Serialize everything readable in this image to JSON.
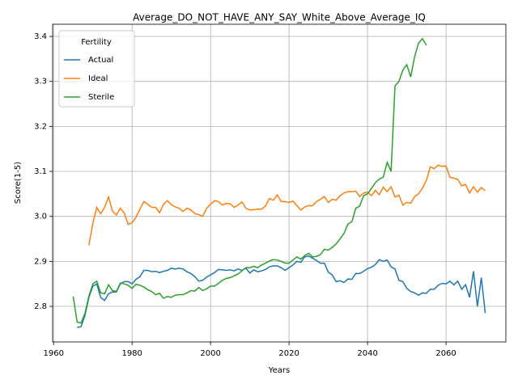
{
  "chart_data": {
    "type": "line",
    "title": "Average_DO_NOT_HAVE_ANY_SAY_White_Above_Average_IQ",
    "xlabel": "Years",
    "ylabel": "Score(1-5)",
    "legend_title": "Fertility",
    "legend": "upper left",
    "grid": true,
    "xlim": [
      1959.75,
      2075.25
    ],
    "xticks": [
      1960,
      1980,
      2000,
      2020,
      2040,
      2060
    ],
    "ylim": [
      2.721,
      3.427
    ],
    "yticks": [
      2.8,
      2.9,
      {
        "value": 3,
        "label": "3.0"
      },
      3.1,
      3.2,
      3.3,
      3.4
    ],
    "x": [
      1965,
      1966,
      1967,
      1968,
      1969,
      1970,
      1971,
      1972,
      1973,
      1974,
      1975,
      1976,
      1977,
      1978,
      1979,
      1980,
      1981,
      1982,
      1983,
      1984,
      1985,
      1986,
      1987,
      1988,
      1989,
      1990,
      1991,
      1992,
      1993,
      1994,
      1995,
      1996,
      1997,
      1998,
      1999,
      2000,
      2001,
      2002,
      2003,
      2004,
      2005,
      2006,
      2007,
      2008,
      2009,
      2010,
      2011,
      2012,
      2013,
      2014,
      2015,
      2016,
      2017,
      2018,
      2019,
      2020,
      2021,
      2022,
      2023,
      2024,
      2025,
      2026,
      2027,
      2028,
      2029,
      2030,
      2031,
      2032,
      2033,
      2034,
      2035,
      2036,
      2037,
      2038,
      2039,
      2040,
      2041,
      2042,
      2043,
      2044,
      2045,
      2046,
      2047,
      2048,
      2049,
      2050,
      2051,
      2052,
      2053,
      2054,
      2055,
      2056,
      2057,
      2058,
      2059,
      2060,
      2061,
      2062,
      2063,
      2064,
      2065,
      2066,
      2067,
      2068,
      2069,
      2070
    ],
    "series": [
      {
        "name": "Actual",
        "color": "#1f77b4",
        "values": [
          null,
          2.753,
          2.755,
          2.78,
          2.82,
          2.845,
          2.85,
          2.82,
          2.813,
          2.828,
          2.832,
          2.832,
          2.85,
          2.855,
          2.855,
          2.85,
          2.86,
          2.866,
          2.88,
          2.88,
          2.877,
          2.878,
          2.875,
          2.878,
          2.88,
          2.885,
          2.883,
          2.885,
          2.883,
          2.877,
          2.873,
          2.866,
          2.856,
          2.858,
          2.865,
          2.87,
          2.875,
          2.882,
          2.881,
          2.88,
          2.881,
          2.879,
          2.883,
          2.88,
          2.885,
          2.874,
          2.881,
          2.877,
          2.879,
          2.882,
          2.888,
          2.89,
          2.89,
          2.886,
          2.88,
          2.886,
          2.892,
          2.9,
          2.898,
          2.91,
          2.912,
          2.907,
          2.902,
          2.896,
          2.896,
          2.876,
          2.87,
          2.855,
          2.857,
          2.853,
          2.861,
          2.86,
          2.873,
          2.873,
          2.878,
          2.884,
          2.887,
          2.893,
          2.904,
          2.9,
          2.903,
          2.888,
          2.883,
          2.858,
          2.855,
          2.84,
          2.833,
          2.83,
          2.825,
          2.83,
          2.829,
          2.838,
          2.838,
          2.847,
          2.851,
          2.85,
          2.856,
          2.848,
          2.856,
          2.838,
          2.848,
          2.82,
          2.878,
          2.8,
          2.864,
          2.785
        ]
      },
      {
        "name": "Ideal",
        "color": "#ff7f0e",
        "values": [
          null,
          null,
          null,
          null,
          2.936,
          2.985,
          3.02,
          3.006,
          3.02,
          3.043,
          3.012,
          3.003,
          3.018,
          3.008,
          2.982,
          2.986,
          2.998,
          3.016,
          3.033,
          3.027,
          3.02,
          3.02,
          3.008,
          3.027,
          3.035,
          3.026,
          3.021,
          3.018,
          3.011,
          3.018,
          3.014,
          3.006,
          3.004,
          3.0,
          3.018,
          3.027,
          3.035,
          3.033,
          3.025,
          3.029,
          3.028,
          3.02,
          3.025,
          3.032,
          3.018,
          3.014,
          3.015,
          3.016,
          3.016,
          3.023,
          3.04,
          3.036,
          3.048,
          3.033,
          3.033,
          3.031,
          3.034,
          3.024,
          3.014,
          3.021,
          3.024,
          3.024,
          3.033,
          3.038,
          3.044,
          3.031,
          3.038,
          3.036,
          3.046,
          3.052,
          3.055,
          3.055,
          3.056,
          3.044,
          3.052,
          3.054,
          3.046,
          3.058,
          3.048,
          3.065,
          3.055,
          3.066,
          3.043,
          3.047,
          3.025,
          3.031,
          3.029,
          3.044,
          3.05,
          3.063,
          3.08,
          3.11,
          3.106,
          3.114,
          3.111,
          3.112,
          3.087,
          3.085,
          3.082,
          3.068,
          3.071,
          3.052,
          3.066,
          3.054,
          3.064,
          3.057
        ]
      },
      {
        "name": "Sterile",
        "color": "#2ca02c",
        "values": [
          2.822,
          2.765,
          2.763,
          2.785,
          2.823,
          2.85,
          2.856,
          2.83,
          2.828,
          2.848,
          2.835,
          2.833,
          2.852,
          2.85,
          2.847,
          2.84,
          2.849,
          2.847,
          2.843,
          2.837,
          2.833,
          2.826,
          2.829,
          2.818,
          2.822,
          2.82,
          2.825,
          2.826,
          2.826,
          2.83,
          2.835,
          2.834,
          2.842,
          2.835,
          2.839,
          2.845,
          2.845,
          2.851,
          2.858,
          2.862,
          2.864,
          2.868,
          2.872,
          2.879,
          2.886,
          2.886,
          2.889,
          2.886,
          2.892,
          2.896,
          2.901,
          2.904,
          2.903,
          2.9,
          2.896,
          2.896,
          2.903,
          2.91,
          2.905,
          2.913,
          2.918,
          2.91,
          2.911,
          2.915,
          2.927,
          2.925,
          2.931,
          2.939,
          2.95,
          2.962,
          2.983,
          2.988,
          3.018,
          3.023,
          3.046,
          3.05,
          3.062,
          3.075,
          3.083,
          3.087,
          3.12,
          3.1,
          3.29,
          3.3,
          3.325,
          3.337,
          3.31,
          3.355,
          3.385,
          3.395,
          3.38,
          null,
          null,
          null,
          null,
          null,
          null,
          null,
          null,
          null,
          null,
          null,
          null,
          null,
          null,
          null
        ]
      }
    ]
  }
}
